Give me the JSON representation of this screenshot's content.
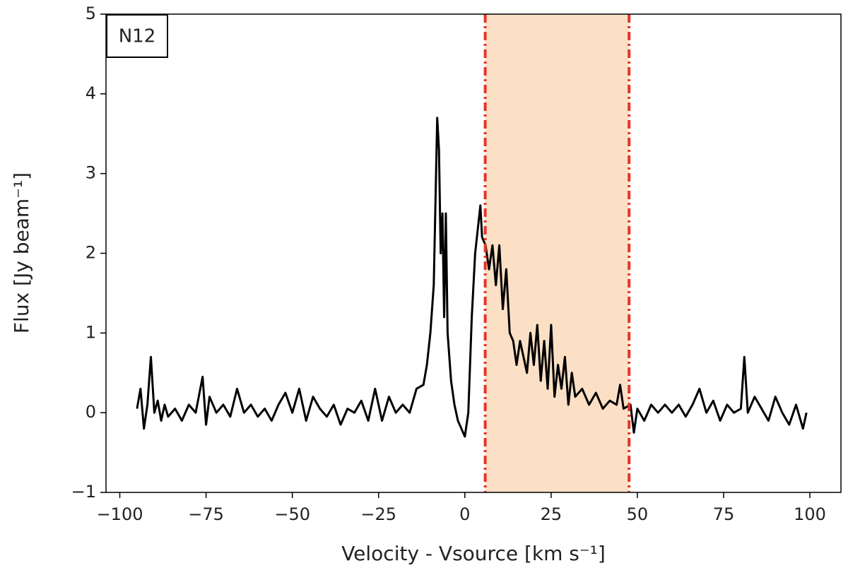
{
  "chart_data": {
    "type": "line",
    "annotation": "N12",
    "xlabel": "Velocity - Vsource [km s⁻¹]",
    "ylabel": "Flux [Jy beam⁻¹]",
    "color": "#000000",
    "span": [
      5.9,
      47.6
    ],
    "span_color": "#fbe0c5",
    "span_line_color": "#e8332a",
    "xlim": [
      -104,
      109
    ],
    "ylim": [
      -1,
      5
    ],
    "xticks": [
      {
        "value": -100,
        "label": "−100"
      },
      {
        "value": -75,
        "label": "−75"
      },
      {
        "value": -50,
        "label": "−50"
      },
      {
        "value": -25,
        "label": "−25"
      },
      0,
      25,
      50,
      75,
      100
    ],
    "yticks": [
      {
        "value": -1,
        "label": "−1"
      },
      0,
      1,
      2,
      3,
      4,
      5
    ],
    "x": [
      -95,
      -94,
      -93,
      -92,
      -91,
      -90,
      -89,
      -88,
      -87,
      -86,
      -84,
      -82,
      -80,
      -78,
      -76,
      -75,
      -74,
      -72,
      -70,
      -68,
      -66,
      -64,
      -62,
      -60,
      -58,
      -56,
      -54,
      -52,
      -50,
      -48,
      -46,
      -44,
      -42,
      -40,
      -38,
      -36,
      -34,
      -32,
      -30,
      -28,
      -26,
      -24,
      -22,
      -20,
      -18,
      -16,
      -14,
      -12,
      -11,
      -10,
      -9,
      -8,
      -7.5,
      -7,
      -6.5,
      -6,
      -5.5,
      -5,
      -4,
      -3,
      -2,
      -1,
      0,
      1,
      2,
      3,
      4,
      4.5,
      5,
      6,
      7,
      8,
      9,
      10,
      11,
      12,
      13,
      14,
      15,
      16,
      17,
      18,
      19,
      20,
      21,
      22,
      23,
      24,
      25,
      26,
      27,
      28,
      29,
      30,
      31,
      32,
      34,
      36,
      38,
      40,
      42,
      44,
      45,
      46,
      48,
      49,
      50,
      52,
      54,
      56,
      58,
      60,
      62,
      64,
      66,
      68,
      70,
      72,
      74,
      76,
      78,
      80,
      81,
      82,
      84,
      86,
      88,
      90,
      92,
      94,
      96,
      98,
      99
    ],
    "values": [
      0.05,
      0.3,
      -0.2,
      0.1,
      0.7,
      0.0,
      0.15,
      -0.1,
      0.1,
      -0.05,
      0.05,
      -0.1,
      0.1,
      0.0,
      0.45,
      -0.15,
      0.2,
      0.0,
      0.1,
      -0.05,
      0.3,
      0.0,
      0.1,
      -0.05,
      0.05,
      -0.1,
      0.1,
      0.25,
      0.0,
      0.3,
      -0.1,
      0.2,
      0.05,
      -0.05,
      0.1,
      -0.15,
      0.05,
      0.0,
      0.15,
      -0.1,
      0.3,
      -0.1,
      0.2,
      0.0,
      0.1,
      0.0,
      0.3,
      0.35,
      0.6,
      1.0,
      1.6,
      3.7,
      3.3,
      2.0,
      2.5,
      1.2,
      2.5,
      1.0,
      0.4,
      0.1,
      -0.1,
      -0.2,
      -0.3,
      0.0,
      1.2,
      2.0,
      2.4,
      2.6,
      2.2,
      2.1,
      1.8,
      2.1,
      1.6,
      2.1,
      1.3,
      1.8,
      1.0,
      0.9,
      0.6,
      0.9,
      0.7,
      0.5,
      1.0,
      0.6,
      1.1,
      0.4,
      0.9,
      0.3,
      1.1,
      0.2,
      0.6,
      0.3,
      0.7,
      0.1,
      0.5,
      0.2,
      0.3,
      0.1,
      0.25,
      0.05,
      0.15,
      0.1,
      0.35,
      0.05,
      0.1,
      -0.25,
      0.05,
      -0.1,
      0.1,
      0.0,
      0.1,
      0.0,
      0.1,
      -0.05,
      0.1,
      0.3,
      0.0,
      0.15,
      -0.1,
      0.1,
      0.0,
      0.05,
      0.7,
      0.0,
      0.2,
      0.05,
      -0.1,
      0.2,
      0.0,
      -0.15,
      0.1,
      -0.2,
      0.0
    ]
  }
}
